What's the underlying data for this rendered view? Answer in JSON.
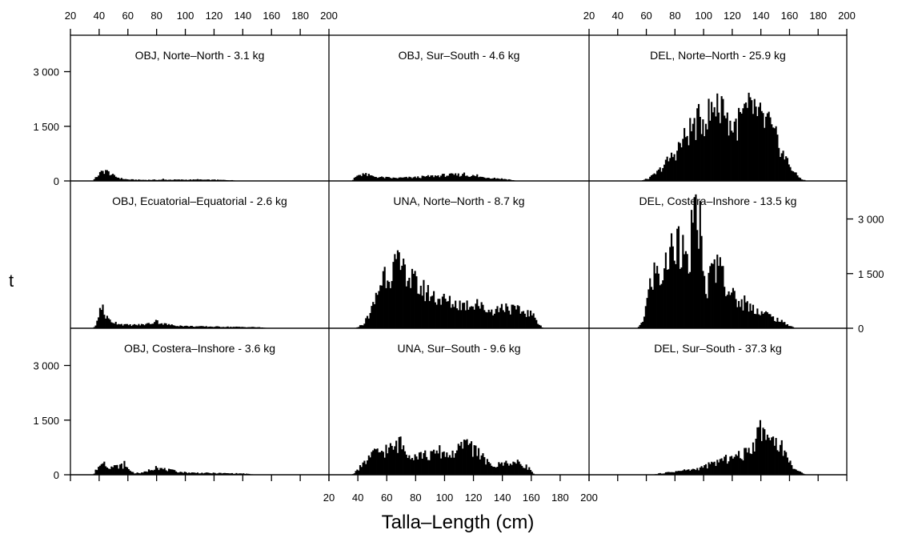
{
  "chart_data": {
    "type": "bar",
    "title": "",
    "xlabel": "Talla–Length (cm)",
    "ylabel": "t",
    "xlim": [
      20,
      200
    ],
    "ylim": [
      0,
      4000
    ],
    "x_ticks": [
      20,
      40,
      60,
      80,
      100,
      120,
      140,
      160,
      180,
      200
    ],
    "x_tick_labels": [
      "20",
      "40",
      "60",
      "80",
      "100",
      "120",
      "140",
      "160",
      "180",
      "200"
    ],
    "y_ticks": [
      0,
      1500,
      3000
    ],
    "y_tick_labels": [
      "0",
      "1 500",
      "3 000"
    ],
    "bin_width_cm": 1,
    "bin_start_cm": 20,
    "panels": [
      {
        "label": "OBJ, Norte–North - 3.1 kg",
        "row": 1,
        "col": 1,
        "profile": [
          [
            20,
            0
          ],
          [
            35,
            0
          ],
          [
            37,
            60
          ],
          [
            40,
            200
          ],
          [
            43,
            270
          ],
          [
            46,
            250
          ],
          [
            50,
            140
          ],
          [
            55,
            70
          ],
          [
            60,
            40
          ],
          [
            70,
            30
          ],
          [
            90,
            35
          ],
          [
            110,
            35
          ],
          [
            130,
            25
          ],
          [
            140,
            0
          ],
          [
            200,
            0
          ]
        ],
        "spikes": [
          [
            44,
            300
          ],
          [
            84,
            60
          ],
          [
            108,
            50
          ],
          [
            120,
            40
          ]
        ]
      },
      {
        "label": "OBJ, Sur–South - 4.6 kg",
        "row": 1,
        "col": 2,
        "profile": [
          [
            20,
            0
          ],
          [
            36,
            0
          ],
          [
            38,
            100
          ],
          [
            40,
            170
          ],
          [
            44,
            190
          ],
          [
            50,
            130
          ],
          [
            56,
            100
          ],
          [
            65,
            80
          ],
          [
            80,
            100
          ],
          [
            90,
            130
          ],
          [
            100,
            160
          ],
          [
            110,
            170
          ],
          [
            118,
            150
          ],
          [
            125,
            110
          ],
          [
            135,
            80
          ],
          [
            145,
            40
          ],
          [
            150,
            0
          ],
          [
            200,
            0
          ]
        ],
        "spikes": [
          [
            43,
            210
          ],
          [
            103,
            200
          ],
          [
            113,
            230
          ],
          [
            122,
            180
          ]
        ]
      },
      {
        "label": "DEL, Norte–North - 25.9 kg",
        "row": 1,
        "col": 3,
        "profile": [
          [
            20,
            0
          ],
          [
            56,
            0
          ],
          [
            62,
            80
          ],
          [
            68,
            250
          ],
          [
            74,
            520
          ],
          [
            80,
            780
          ],
          [
            86,
            1150
          ],
          [
            92,
            1500
          ],
          [
            98,
            1700
          ],
          [
            104,
            1850
          ],
          [
            108,
            2000
          ],
          [
            112,
            1900
          ],
          [
            116,
            1750
          ],
          [
            120,
            1500
          ],
          [
            124,
            1600
          ],
          [
            128,
            1850
          ],
          [
            132,
            1950
          ],
          [
            136,
            1800
          ],
          [
            140,
            1700
          ],
          [
            144,
            1650
          ],
          [
            148,
            1300
          ],
          [
            152,
            1100
          ],
          [
            156,
            700
          ],
          [
            160,
            450
          ],
          [
            164,
            200
          ],
          [
            168,
            60
          ],
          [
            172,
            0
          ],
          [
            200,
            0
          ]
        ],
        "spikes": [
          [
            109,
            2400
          ],
          [
            113,
            2250
          ],
          [
            135,
            2250
          ],
          [
            139,
            2150
          ],
          [
            145,
            1900
          ]
        ]
      },
      {
        "label": "OBJ, Ecuatorial–Equatorial - 2.6 kg",
        "row": 2,
        "col": 1,
        "profile": [
          [
            20,
            0
          ],
          [
            36,
            0
          ],
          [
            38,
            120
          ],
          [
            40,
            450
          ],
          [
            42,
            560
          ],
          [
            45,
            300
          ],
          [
            48,
            200
          ],
          [
            52,
            150
          ],
          [
            56,
            110
          ],
          [
            60,
            90
          ],
          [
            70,
            100
          ],
          [
            76,
            140
          ],
          [
            80,
            190
          ],
          [
            84,
            130
          ],
          [
            90,
            90
          ],
          [
            100,
            60
          ],
          [
            110,
            50
          ],
          [
            130,
            40
          ],
          [
            150,
            30
          ],
          [
            160,
            0
          ],
          [
            200,
            0
          ]
        ],
        "spikes": [
          [
            42,
            650
          ],
          [
            79,
            230
          ]
        ]
      },
      {
        "label": "UNA, Norte–North - 8.7 kg",
        "row": 2,
        "col": 2,
        "profile": [
          [
            20,
            0
          ],
          [
            38,
            0
          ],
          [
            44,
            120
          ],
          [
            50,
            550
          ],
          [
            54,
            1050
          ],
          [
            58,
            1550
          ],
          [
            62,
            1600
          ],
          [
            66,
            1700
          ],
          [
            70,
            1650
          ],
          [
            74,
            1450
          ],
          [
            78,
            1300
          ],
          [
            82,
            1150
          ],
          [
            88,
            1000
          ],
          [
            95,
            850
          ],
          [
            105,
            700
          ],
          [
            115,
            650
          ],
          [
            120,
            700
          ],
          [
            125,
            600
          ],
          [
            130,
            500
          ],
          [
            135,
            500
          ],
          [
            140,
            600
          ],
          [
            145,
            550
          ],
          [
            150,
            500
          ],
          [
            155,
            450
          ],
          [
            160,
            400
          ],
          [
            164,
            200
          ],
          [
            168,
            0
          ],
          [
            200,
            0
          ]
        ],
        "spikes": [
          [
            66,
            1900
          ],
          [
            72,
            1750
          ],
          [
            122,
            800
          ],
          [
            142,
            680
          ]
        ]
      },
      {
        "label": "DEL, Costera–Inshore - 13.5 kg",
        "row": 2,
        "col": 3,
        "profile": [
          [
            20,
            0
          ],
          [
            54,
            0
          ],
          [
            58,
            250
          ],
          [
            62,
            1100
          ],
          [
            66,
            1600
          ],
          [
            70,
            1400
          ],
          [
            74,
            1750
          ],
          [
            78,
            2300
          ],
          [
            82,
            2500
          ],
          [
            86,
            2100
          ],
          [
            88,
            1600
          ],
          [
            90,
            1800
          ],
          [
            92,
            2800
          ],
          [
            96,
            3100
          ],
          [
            98,
            2400
          ],
          [
            100,
            1300
          ],
          [
            102,
            1100
          ],
          [
            106,
            1600
          ],
          [
            110,
            1750
          ],
          [
            114,
            1400
          ],
          [
            118,
            1100
          ],
          [
            122,
            800
          ],
          [
            126,
            700
          ],
          [
            130,
            650
          ],
          [
            136,
            550
          ],
          [
            140,
            450
          ],
          [
            144,
            400
          ],
          [
            148,
            300
          ],
          [
            152,
            230
          ],
          [
            156,
            150
          ],
          [
            160,
            80
          ],
          [
            164,
            0
          ],
          [
            200,
            0
          ]
        ],
        "spikes": [
          [
            93,
            3600
          ],
          [
            97,
            3500
          ],
          [
            82,
            2800
          ],
          [
            111,
            1950
          ],
          [
            128,
            900
          ]
        ]
      },
      {
        "label": "OBJ, Costera–Inshore - 3.6 kg",
        "row": 3,
        "col": 1,
        "profile": [
          [
            20,
            0
          ],
          [
            36,
            0
          ],
          [
            38,
            150
          ],
          [
            41,
            300
          ],
          [
            44,
            280
          ],
          [
            48,
            220
          ],
          [
            52,
            230
          ],
          [
            56,
            250
          ],
          [
            60,
            180
          ],
          [
            64,
            50
          ],
          [
            70,
            50
          ],
          [
            76,
            150
          ],
          [
            80,
            200
          ],
          [
            84,
            160
          ],
          [
            90,
            120
          ],
          [
            96,
            80
          ],
          [
            102,
            60
          ],
          [
            112,
            50
          ],
          [
            122,
            45
          ],
          [
            140,
            35
          ],
          [
            150,
            0
          ],
          [
            200,
            0
          ]
        ],
        "spikes": [
          [
            43,
            360
          ],
          [
            57,
            380
          ],
          [
            79,
            240
          ]
        ]
      },
      {
        "label": "UNA, Sur–South - 9.6 kg",
        "row": 3,
        "col": 2,
        "profile": [
          [
            20,
            0
          ],
          [
            36,
            0
          ],
          [
            40,
            150
          ],
          [
            44,
            300
          ],
          [
            48,
            500
          ],
          [
            52,
            600
          ],
          [
            56,
            650
          ],
          [
            60,
            700
          ],
          [
            64,
            720
          ],
          [
            68,
            850
          ],
          [
            72,
            750
          ],
          [
            76,
            600
          ],
          [
            80,
            550
          ],
          [
            84,
            580
          ],
          [
            88,
            520
          ],
          [
            92,
            550
          ],
          [
            96,
            650
          ],
          [
            100,
            600
          ],
          [
            104,
            550
          ],
          [
            108,
            650
          ],
          [
            112,
            750
          ],
          [
            116,
            850
          ],
          [
            120,
            700
          ],
          [
            124,
            600
          ],
          [
            128,
            400
          ],
          [
            132,
            250
          ],
          [
            136,
            250
          ],
          [
            140,
            320
          ],
          [
            144,
            350
          ],
          [
            148,
            330
          ],
          [
            152,
            320
          ],
          [
            156,
            250
          ],
          [
            160,
            120
          ],
          [
            162,
            0
          ],
          [
            200,
            0
          ]
        ],
        "spikes": [
          [
            69,
            1050
          ],
          [
            114,
            950
          ],
          [
            118,
            920
          ],
          [
            121,
            800
          ]
        ]
      },
      {
        "label": "DEL, Sur–South - 37.3 kg",
        "row": 3,
        "col": 3,
        "profile": [
          [
            20,
            0
          ],
          [
            64,
            0
          ],
          [
            70,
            40
          ],
          [
            76,
            70
          ],
          [
            82,
            100
          ],
          [
            88,
            130
          ],
          [
            94,
            150
          ],
          [
            100,
            220
          ],
          [
            106,
            300
          ],
          [
            112,
            400
          ],
          [
            118,
            450
          ],
          [
            124,
            520
          ],
          [
            128,
            560
          ],
          [
            132,
            700
          ],
          [
            136,
            950
          ],
          [
            140,
            1150
          ],
          [
            144,
            1050
          ],
          [
            148,
            950
          ],
          [
            152,
            850
          ],
          [
            156,
            700
          ],
          [
            160,
            350
          ],
          [
            163,
            200
          ],
          [
            166,
            100
          ],
          [
            170,
            20
          ],
          [
            172,
            0
          ],
          [
            200,
            0
          ]
        ],
        "spikes": [
          [
            118,
            500
          ],
          [
            137,
            1300
          ],
          [
            139,
            1500
          ],
          [
            142,
            1250
          ],
          [
            148,
            1050
          ]
        ]
      }
    ]
  },
  "panel_titles": [
    "OBJ, Norte–North - 3.1 kg",
    "OBJ, Sur–South - 4.6 kg",
    "DEL, Norte–North - 25.9 kg",
    "OBJ, Ecuatorial–Equatorial - 2.6 kg",
    "UNA, Norte–North - 8.7 kg",
    "DEL, Costera–Inshore - 13.5 kg",
    "OBJ, Costera–Inshore - 3.6 kg",
    "UNA, Sur–South - 9.6 kg",
    "DEL, Sur–South - 37.3 kg"
  ]
}
